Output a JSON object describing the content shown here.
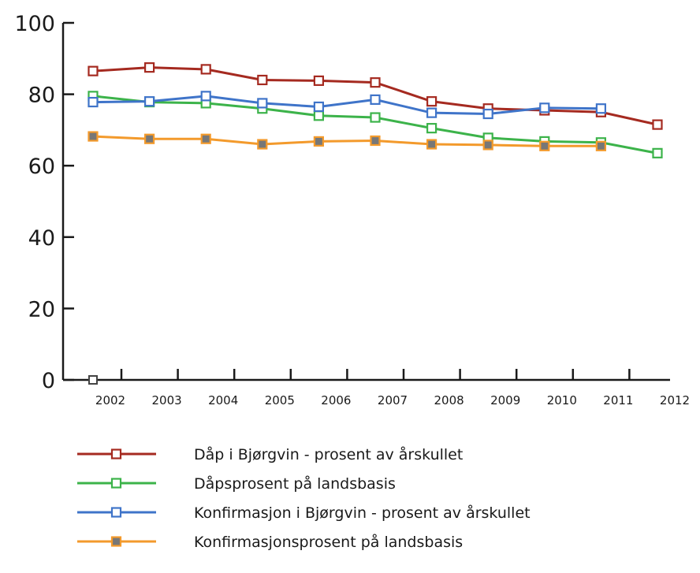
{
  "chart_data": {
    "type": "line",
    "title": "",
    "xlabel": "",
    "ylabel": "",
    "ylim": [
      0,
      100
    ],
    "yticks": [
      "0",
      "20",
      "40",
      "60",
      "80",
      "100"
    ],
    "categories": [
      "2002",
      "2003",
      "2004",
      "2005",
      "2006",
      "2007",
      "2008",
      "2009",
      "2010",
      "2011",
      "2012"
    ],
    "grid": false,
    "legend_position": "bottom",
    "origin_marker": 0,
    "series": [
      {
        "name": "Dåp i Bjørgvin - prosent av årskullet",
        "color": "#a52a20",
        "marker_fill": "#ffffff",
        "values": [
          86.5,
          87.5,
          87,
          84,
          83.8,
          83.3,
          78,
          76,
          75.5,
          75,
          71.5
        ]
      },
      {
        "name": "Dåpsprosent på landsbasis",
        "color": "#3cb34a",
        "marker_fill": "#ffffff",
        "values": [
          79.5,
          77.8,
          77.5,
          76,
          74,
          73.5,
          70.5,
          67.8,
          66.8,
          66.5,
          63.5
        ]
      },
      {
        "name": "Konfirmasjon i Bjørgvin - prosent av årskullet",
        "color": "#3f74c9",
        "marker_fill": "#ffffff",
        "values": [
          77.8,
          78,
          79.5,
          77.5,
          76.5,
          78.5,
          74.8,
          74.5,
          76.2,
          76,
          null
        ]
      },
      {
        "name": "Konfirmasjonsprosent på landsbasis",
        "color": "#f39a2c",
        "marker_fill": "#777777",
        "values": [
          68.2,
          67.5,
          67.5,
          66,
          66.8,
          67,
          66,
          65.8,
          65.5,
          65.5,
          null
        ]
      }
    ]
  }
}
